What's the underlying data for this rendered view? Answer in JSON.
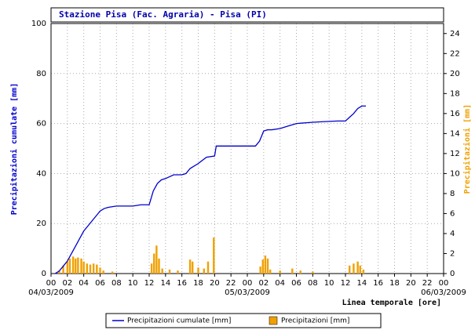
{
  "chart_data": {
    "type": "line_bar_dual",
    "title": "Stazione Pisa (Fac. Agraria) - Pisa (PI)",
    "ylabel": "Precipitazioni cumulate [mm]",
    "y2label": "Precipitazioni [mm]",
    "xlabel": "Linea temporale [ore]",
    "xlim": [
      0,
      48
    ],
    "xticks": [
      {
        "value": 0,
        "label": "00"
      },
      {
        "value": 2,
        "label": "02"
      },
      {
        "value": 4,
        "label": "04"
      },
      {
        "value": 6,
        "label": "06"
      },
      {
        "value": 8,
        "label": "08"
      },
      {
        "value": 10,
        "label": "10"
      },
      {
        "value": 12,
        "label": "12"
      },
      {
        "value": 14,
        "label": "14"
      },
      {
        "value": 16,
        "label": "16"
      },
      {
        "value": 18,
        "label": "18"
      },
      {
        "value": 20,
        "label": "20"
      },
      {
        "value": 22,
        "label": "22"
      },
      {
        "value": 24,
        "label": "00"
      },
      {
        "value": 26,
        "label": "02"
      },
      {
        "value": 28,
        "label": "04"
      },
      {
        "value": 30,
        "label": "06"
      },
      {
        "value": 32,
        "label": "08"
      },
      {
        "value": 34,
        "label": "10"
      },
      {
        "value": 36,
        "label": "12"
      },
      {
        "value": 38,
        "label": "14"
      },
      {
        "value": 40,
        "label": "16"
      },
      {
        "value": 42,
        "label": "18"
      },
      {
        "value": 44,
        "label": "20"
      },
      {
        "value": 46,
        "label": "22"
      },
      {
        "value": 48,
        "label": "00"
      }
    ],
    "date_labels": [
      {
        "value": 0,
        "label": "04/03/2009"
      },
      {
        "value": 24,
        "label": "05/03/2009"
      },
      {
        "value": 48,
        "label": "06/03/2009"
      }
    ],
    "ylim": [
      0,
      100
    ],
    "yticks": [
      0,
      20,
      40,
      60,
      80,
      100
    ],
    "y2lim": [
      0,
      25
    ],
    "y2ticks": [
      0,
      2,
      4,
      6,
      8,
      10,
      12,
      14,
      16,
      18,
      20,
      22,
      24
    ],
    "grid": true,
    "series": [
      {
        "name": "Precipitazioni cumulate [mm]",
        "color": "#0000cc",
        "kind": "line",
        "x": [
          0.5,
          1,
          1.5,
          2,
          2.5,
          3,
          3.5,
          4,
          4.5,
          5,
          5.5,
          6,
          6.5,
          7,
          8,
          9,
          10,
          11,
          12,
          12.5,
          13,
          13.5,
          14,
          15,
          16,
          16.5,
          17,
          18,
          19,
          20,
          20.2,
          21,
          24,
          25,
          25.5,
          26,
          26.5,
          27,
          28,
          29,
          30,
          32,
          33,
          35,
          36,
          36.5,
          37,
          37.5,
          38,
          38.5
        ],
        "values": [
          0,
          1,
          3,
          5,
          8,
          11,
          14,
          17,
          19,
          21,
          23,
          25,
          26,
          26.5,
          27,
          27,
          27,
          27.5,
          27.5,
          33,
          36,
          37.5,
          38,
          39.5,
          39.5,
          40,
          42,
          44,
          46.5,
          47,
          51,
          51,
          51,
          51,
          53,
          57,
          57.5,
          57.5,
          58,
          59,
          60,
          60.5,
          60.7,
          61,
          61,
          62.5,
          64,
          66,
          67,
          67
        ]
      },
      {
        "name": "Precipitazioni [mm]",
        "color": "#f0a000",
        "kind": "bar",
        "axis": "y2",
        "x": [
          1.0,
          1.5,
          2.0,
          2.3,
          2.7,
          3.0,
          3.3,
          3.7,
          4.0,
          4.4,
          4.8,
          5.2,
          5.6,
          6.0,
          6.4,
          7.5,
          12.3,
          12.6,
          12.9,
          13.2,
          13.6,
          14.5,
          15.5,
          17.0,
          17.3,
          18.0,
          18.7,
          19.2,
          19.9,
          25.6,
          25.9,
          26.2,
          26.5,
          26.8,
          28.0,
          29.5,
          30.5,
          32.0,
          36.5,
          37.0,
          37.5,
          37.8,
          38.2
        ],
        "values": [
          0.3,
          0.8,
          1.2,
          1.5,
          1.7,
          1.5,
          1.6,
          1.5,
          1.2,
          1.0,
          0.9,
          1.0,
          0.9,
          0.6,
          0.3,
          0.2,
          1.0,
          2.0,
          2.8,
          1.5,
          0.5,
          0.4,
          0.3,
          1.4,
          1.2,
          0.6,
          0.5,
          1.2,
          3.6,
          0.7,
          1.4,
          1.8,
          1.5,
          0.4,
          0.3,
          0.5,
          0.3,
          0.2,
          0.8,
          1.0,
          1.2,
          0.8,
          0.4
        ]
      }
    ]
  }
}
